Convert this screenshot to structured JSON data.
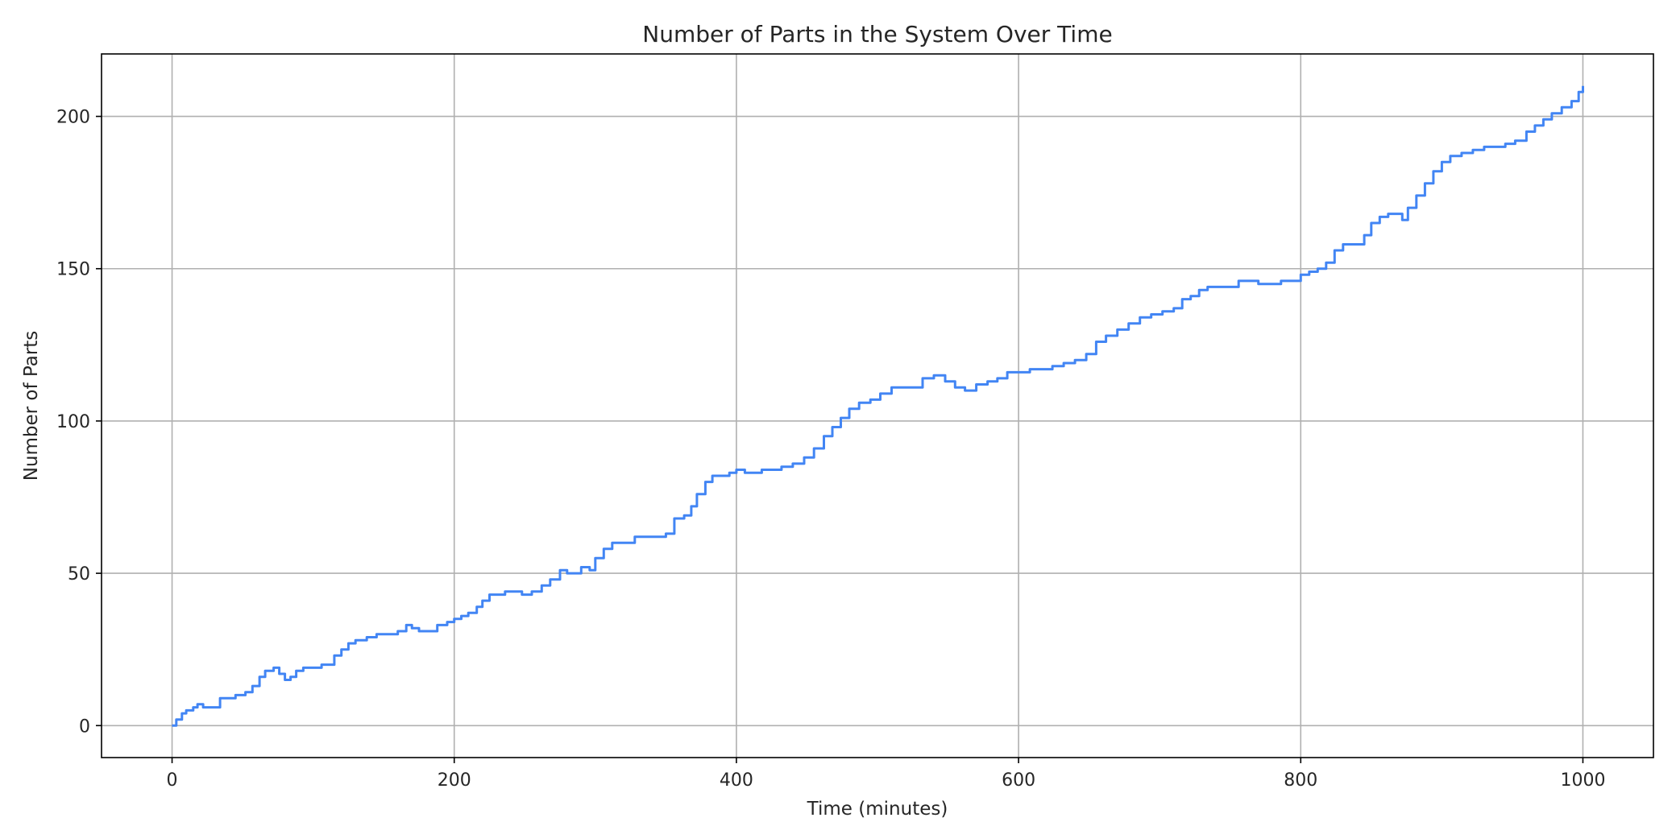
{
  "chart_data": {
    "type": "line",
    "title": "Number of Parts in the System Over Time",
    "xlabel": "Time (minutes)",
    "ylabel": "Number of Parts",
    "xlim": [
      -50,
      1050
    ],
    "ylim": [
      -10.5,
      220.5
    ],
    "xticks": [
      0,
      200,
      400,
      600,
      800,
      1000
    ],
    "yticks": [
      0,
      50,
      100,
      150,
      200
    ],
    "xtick_labels": [
      "0",
      "200",
      "400",
      "600",
      "800",
      "1000"
    ],
    "ytick_labels": [
      "0",
      "50",
      "100",
      "150",
      "200"
    ],
    "grid": true,
    "line_style": "step",
    "series": [
      {
        "color": "#4285f4",
        "points": [
          [
            0,
            0
          ],
          [
            3,
            2
          ],
          [
            7,
            4
          ],
          [
            10,
            5
          ],
          [
            15,
            6
          ],
          [
            18,
            7
          ],
          [
            22,
            6
          ],
          [
            26,
            6
          ],
          [
            30,
            6
          ],
          [
            34,
            9
          ],
          [
            40,
            9
          ],
          [
            45,
            10
          ],
          [
            52,
            11
          ],
          [
            57,
            13
          ],
          [
            62,
            16
          ],
          [
            66,
            18
          ],
          [
            72,
            19
          ],
          [
            76,
            17
          ],
          [
            80,
            15
          ],
          [
            84,
            16
          ],
          [
            88,
            18
          ],
          [
            93,
            19
          ],
          [
            100,
            19
          ],
          [
            106,
            20
          ],
          [
            110,
            20
          ],
          [
            115,
            23
          ],
          [
            120,
            25
          ],
          [
            125,
            27
          ],
          [
            130,
            28
          ],
          [
            138,
            29
          ],
          [
            145,
            30
          ],
          [
            152,
            30
          ],
          [
            160,
            31
          ],
          [
            166,
            33
          ],
          [
            170,
            32
          ],
          [
            175,
            31
          ],
          [
            182,
            31
          ],
          [
            188,
            33
          ],
          [
            195,
            34
          ],
          [
            200,
            35
          ],
          [
            205,
            36
          ],
          [
            210,
            37
          ],
          [
            216,
            39
          ],
          [
            220,
            41
          ],
          [
            225,
            43
          ],
          [
            230,
            43
          ],
          [
            236,
            44
          ],
          [
            242,
            44
          ],
          [
            248,
            43
          ],
          [
            255,
            44
          ],
          [
            262,
            46
          ],
          [
            268,
            48
          ],
          [
            275,
            51
          ],
          [
            280,
            50
          ],
          [
            285,
            50
          ],
          [
            290,
            52
          ],
          [
            296,
            51
          ],
          [
            300,
            55
          ],
          [
            306,
            58
          ],
          [
            312,
            60
          ],
          [
            320,
            60
          ],
          [
            328,
            62
          ],
          [
            335,
            62
          ],
          [
            342,
            62
          ],
          [
            350,
            63
          ],
          [
            356,
            68
          ],
          [
            363,
            69
          ],
          [
            368,
            72
          ],
          [
            372,
            76
          ],
          [
            378,
            80
          ],
          [
            383,
            82
          ],
          [
            390,
            82
          ],
          [
            395,
            83
          ],
          [
            400,
            84
          ],
          [
            406,
            83
          ],
          [
            412,
            83
          ],
          [
            418,
            84
          ],
          [
            425,
            84
          ],
          [
            432,
            85
          ],
          [
            440,
            86
          ],
          [
            448,
            88
          ],
          [
            455,
            91
          ],
          [
            462,
            95
          ],
          [
            468,
            98
          ],
          [
            474,
            101
          ],
          [
            480,
            104
          ],
          [
            487,
            106
          ],
          [
            495,
            107
          ],
          [
            502,
            109
          ],
          [
            510,
            111
          ],
          [
            518,
            111
          ],
          [
            525,
            111
          ],
          [
            532,
            114
          ],
          [
            540,
            115
          ],
          [
            548,
            113
          ],
          [
            555,
            111
          ],
          [
            562,
            110
          ],
          [
            570,
            112
          ],
          [
            578,
            113
          ],
          [
            585,
            114
          ],
          [
            592,
            116
          ],
          [
            600,
            116
          ],
          [
            608,
            117
          ],
          [
            616,
            117
          ],
          [
            624,
            118
          ],
          [
            632,
            119
          ],
          [
            640,
            120
          ],
          [
            648,
            122
          ],
          [
            655,
            126
          ],
          [
            662,
            128
          ],
          [
            670,
            130
          ],
          [
            678,
            132
          ],
          [
            686,
            134
          ],
          [
            694,
            135
          ],
          [
            702,
            136
          ],
          [
            710,
            137
          ],
          [
            716,
            140
          ],
          [
            722,
            141
          ],
          [
            728,
            143
          ],
          [
            734,
            144
          ],
          [
            740,
            144
          ],
          [
            748,
            144
          ],
          [
            756,
            146
          ],
          [
            762,
            146
          ],
          [
            770,
            145
          ],
          [
            778,
            145
          ],
          [
            786,
            146
          ],
          [
            794,
            146
          ],
          [
            800,
            148
          ],
          [
            806,
            149
          ],
          [
            812,
            150
          ],
          [
            818,
            152
          ],
          [
            824,
            156
          ],
          [
            830,
            158
          ],
          [
            838,
            158
          ],
          [
            845,
            161
          ],
          [
            850,
            165
          ],
          [
            856,
            167
          ],
          [
            862,
            168
          ],
          [
            868,
            168
          ],
          [
            872,
            166
          ],
          [
            876,
            170
          ],
          [
            882,
            174
          ],
          [
            888,
            178
          ],
          [
            894,
            182
          ],
          [
            900,
            185
          ],
          [
            906,
            187
          ],
          [
            914,
            188
          ],
          [
            922,
            189
          ],
          [
            930,
            190
          ],
          [
            938,
            190
          ],
          [
            945,
            191
          ],
          [
            952,
            192
          ],
          [
            960,
            195
          ],
          [
            966,
            197
          ],
          [
            972,
            199
          ],
          [
            978,
            201
          ],
          [
            985,
            203
          ],
          [
            992,
            205
          ],
          [
            997,
            208
          ],
          [
            1000,
            210
          ]
        ]
      }
    ]
  }
}
